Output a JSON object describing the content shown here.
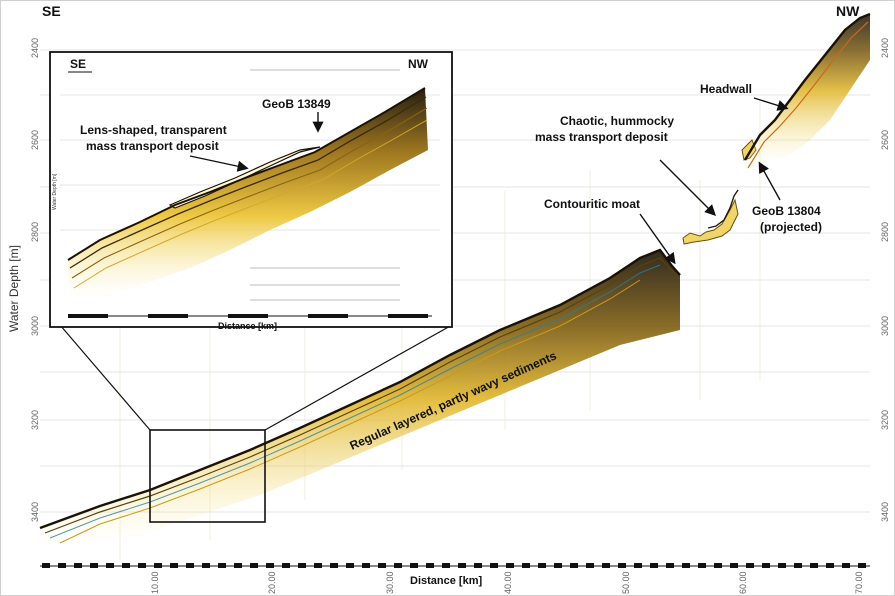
{
  "figure": {
    "corner_left": "SE",
    "corner_right": "NW",
    "y_axis_label": "Water Depth [m]",
    "x_axis_label": "Distance [km]",
    "y_ticks": [
      "2400",
      "2600",
      "2800",
      "3000",
      "3200",
      "3400"
    ],
    "x_ticks": [
      "10.00",
      "20.00",
      "30.00",
      "40.00",
      "50.00",
      "60.00",
      "70.00"
    ]
  },
  "annotations": {
    "headwall": "Headwall",
    "chaotic_line1": "Chaotic, hummocky",
    "chaotic_line2": "mass transport deposit",
    "moat": "Contouritic moat",
    "geob13804_line1": "GeoB 13804",
    "geob13804_line2": "(projected)",
    "regular": "Regular layered, partly wavy sediments"
  },
  "inset": {
    "corner_left": "SE",
    "corner_right": "NW",
    "core": "GeoB 13849",
    "lens_line1": "Lens-shaped, transparent",
    "lens_line2": "mass transport deposit",
    "x_axis_label": "Distance [km]",
    "y_axis_label": "Water Depth [m]"
  },
  "colors": {
    "reflector_dark": "#1a1206",
    "reflector_mid": "#b8860b",
    "reflector_yellow": "#f2d23a",
    "reflector_blue": "#2a7f9a",
    "grid": "#e3e3e3"
  }
}
